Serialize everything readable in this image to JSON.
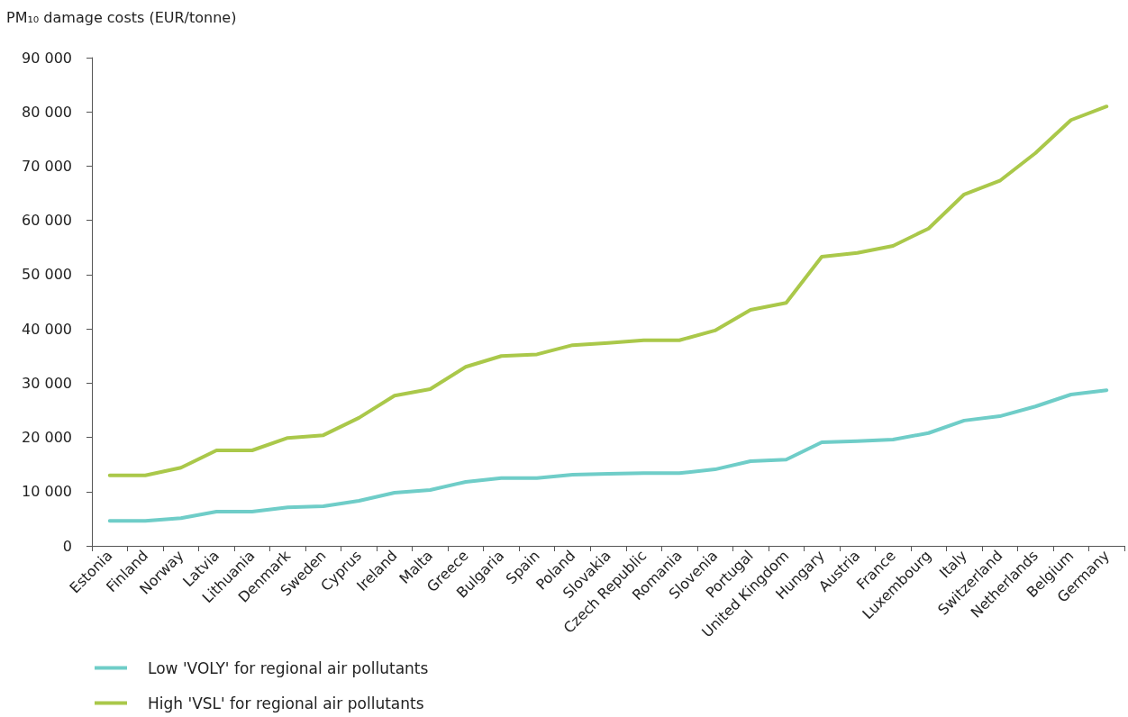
{
  "chart_data": {
    "type": "line",
    "title": "PM₁₀ damage costs (EUR/tonne)",
    "categories": [
      "Estonia",
      "Finland",
      "Norway",
      "Latvia",
      "Lithuania",
      "Denmark",
      "Sweden",
      "Cyprus",
      "Ireland",
      "Malta",
      "Greece",
      "Bulgaria",
      "Spain",
      "Poland",
      "Slovakia",
      "Czech Republic",
      "Romania",
      "Slovenia",
      "Portugal",
      "United Kingdom",
      "Hungary",
      "Austria",
      "France",
      "Luxembourg",
      "Italy",
      "Switzerland",
      "Netherlands",
      "Belgium",
      "Germany"
    ],
    "series": [
      {
        "name": "Low 'VOLY' for regional air pollutants",
        "color": "#6fcdc8",
        "values": [
          4600,
          4600,
          5100,
          6300,
          6300,
          7100,
          7300,
          8300,
          9800,
          10300,
          11800,
          12500,
          12500,
          13100,
          13300,
          13400,
          13400,
          14100,
          15600,
          15900,
          19100,
          19300,
          19600,
          20800,
          23100,
          23900,
          25700,
          27900,
          28700
        ]
      },
      {
        "name": "High 'VSL' for regional air pollutants",
        "color": "#aac84a",
        "values": [
          13000,
          13000,
          14400,
          17600,
          17600,
          19900,
          20400,
          23600,
          27700,
          28900,
          33000,
          35000,
          35300,
          37000,
          37400,
          37900,
          37900,
          39700,
          43500,
          44800,
          53300,
          54000,
          55300,
          58500,
          64800,
          67300,
          72400,
          78500,
          81000
        ]
      }
    ],
    "ylim": [
      0,
      90000
    ],
    "yticks": [
      0,
      {
        "value": 10000,
        "label": "10 000"
      },
      {
        "value": 20000,
        "label": "20 000"
      },
      {
        "value": 30000,
        "label": "30 000"
      },
      {
        "value": 40000,
        "label": "40 000"
      },
      {
        "value": 50000,
        "label": "50 000"
      },
      {
        "value": 60000,
        "label": "60 000"
      },
      {
        "value": 70000,
        "label": "70 000"
      },
      {
        "value": 80000,
        "label": "80 000"
      },
      {
        "value": 90000,
        "label": "90 000"
      }
    ],
    "grid": false,
    "legend": "bottom left",
    "marker": "none",
    "line_style": "solid"
  }
}
